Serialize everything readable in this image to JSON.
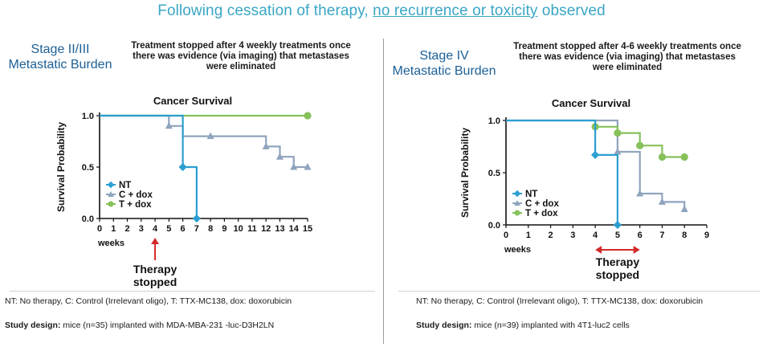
{
  "headline": {
    "part1": "Following cessation of therapy, ",
    "part2": "no recurrence or toxicity",
    "part3": " observed"
  },
  "colors": {
    "NT": "#2b9fd1",
    "C + dox": "#8fa4bd",
    "T + dox": "#86c15a",
    "headline": "#3aa6c4",
    "stage": "#1b5f96",
    "arrow": "#d22b2b"
  },
  "panels": [
    {
      "stage_line1": "Stage II/III",
      "stage_line2": "Metastatic Burden",
      "note": [
        "Treatment stopped after 4 weekly treatments once",
        "there was evidence (via imaging) that metastases",
        "were eliminated"
      ],
      "therapy_line1": "Therapy",
      "therapy_line2": "stopped",
      "footnote": "NT: No therapy, C: Control (Irrelevant oligo), T: TTX-MC138, dox: doxorubicin",
      "design_label": "Study design:",
      "design_text": " mice (n=35) implanted with MDA-MBA-231 -luc-D3H2LN"
    },
    {
      "stage_line1": "Stage IV",
      "stage_line2": "Metastatic Burden",
      "note": [
        "Treatment stopped after 4-6 weekly treatments once",
        "there was evidence (via imaging) that metastases",
        "were eliminated"
      ],
      "therapy_line1": "Therapy",
      "therapy_line2": "stopped",
      "footnote": "NT: No therapy, C: Control (Irrelevant oligo), T: TTX-MC138, dox: doxorubicin",
      "design_label": "Study design:",
      "design_text": " mice (n=39) implanted with 4T1-luc2 cells"
    }
  ],
  "chart_data": [
    {
      "type": "line",
      "step": true,
      "title": "Cancer Survival",
      "ylabel": "Survival Probability",
      "xlabel": "weeks",
      "xlim": [
        0,
        15
      ],
      "ylim": [
        0,
        1.0
      ],
      "xticks": [
        0,
        1,
        2,
        3,
        4,
        5,
        6,
        7,
        8,
        9,
        10,
        11,
        12,
        13,
        14,
        15
      ],
      "yticks": [
        0.0,
        0.5,
        1.0
      ],
      "ytick_labels": [
        "0.0",
        "0.5",
        "1.0"
      ],
      "legend": [
        "NT",
        "C + dox",
        "T + dox"
      ],
      "legend_position": "bottom-left",
      "annotation": {
        "type": "arrow-up",
        "x": 4
      },
      "series": [
        {
          "name": "T + dox",
          "points": [
            [
              0,
              1.0
            ],
            [
              15,
              1.0
            ]
          ],
          "markers": [
            [
              15,
              1.0
            ]
          ]
        },
        {
          "name": "C + dox",
          "points": [
            [
              0,
              1.0
            ],
            [
              5,
              1.0
            ],
            [
              5,
              0.9
            ],
            [
              6,
              0.9
            ],
            [
              6,
              0.8
            ],
            [
              8,
              0.8
            ],
            [
              12,
              0.8
            ],
            [
              12,
              0.7
            ],
            [
              13,
              0.7
            ],
            [
              13,
              0.6
            ],
            [
              14,
              0.6
            ],
            [
              14,
              0.5
            ],
            [
              15,
              0.5
            ]
          ],
          "markers": [
            [
              5,
              0.9
            ],
            [
              8,
              0.8
            ],
            [
              12,
              0.7
            ],
            [
              13,
              0.6
            ],
            [
              14,
              0.5
            ],
            [
              15,
              0.5
            ]
          ]
        },
        {
          "name": "NT",
          "points": [
            [
              0,
              1.0
            ],
            [
              6,
              1.0
            ],
            [
              6,
              0.5
            ],
            [
              7,
              0.5
            ],
            [
              7,
              0.0
            ]
          ],
          "markers": [
            [
              6,
              0.5
            ],
            [
              7,
              0.0
            ]
          ]
        }
      ]
    },
    {
      "type": "line",
      "step": true,
      "title": "Cancer Survival",
      "ylabel": "Survival Probability",
      "xlabel": "weeks",
      "xlim": [
        0,
        9
      ],
      "ylim": [
        0,
        1.0
      ],
      "xticks": [
        0,
        1,
        2,
        3,
        4,
        5,
        6,
        7,
        8,
        9
      ],
      "yticks": [
        0.0,
        0.5,
        1.0
      ],
      "ytick_labels": [
        "0.0",
        "0.5",
        "1.0"
      ],
      "legend": [
        "NT",
        "C + dox",
        "T + dox"
      ],
      "legend_position": "bottom-left",
      "annotation": {
        "type": "double-arrow",
        "x_from": 4,
        "x_to": 6
      },
      "series": [
        {
          "name": "C + dox",
          "points": [
            [
              0,
              1.0
            ],
            [
              5,
              1.0
            ],
            [
              5,
              0.7
            ],
            [
              6,
              0.7
            ],
            [
              6,
              0.3
            ],
            [
              7,
              0.3
            ],
            [
              7,
              0.22
            ],
            [
              8,
              0.22
            ],
            [
              8,
              0.15
            ]
          ],
          "markers": [
            [
              5,
              0.7
            ],
            [
              6,
              0.3
            ],
            [
              7,
              0.22
            ],
            [
              8,
              0.15
            ]
          ]
        },
        {
          "name": "T + dox",
          "points": [
            [
              4,
              0.94
            ],
            [
              5,
              0.94
            ],
            [
              5,
              0.88
            ],
            [
              6,
              0.88
            ],
            [
              6,
              0.76
            ],
            [
              7,
              0.76
            ],
            [
              7,
              0.65
            ],
            [
              8,
              0.65
            ]
          ],
          "markers": [
            [
              4,
              0.94
            ],
            [
              5,
              0.88
            ],
            [
              6,
              0.76
            ],
            [
              7,
              0.65
            ],
            [
              8,
              0.65
            ]
          ]
        },
        {
          "name": "NT",
          "points": [
            [
              0,
              1.0
            ],
            [
              4,
              1.0
            ],
            [
              4,
              0.67
            ],
            [
              5,
              0.67
            ],
            [
              5,
              0.0
            ]
          ],
          "markers": [
            [
              4,
              0.67
            ],
            [
              5,
              0.0
            ]
          ]
        }
      ]
    }
  ]
}
